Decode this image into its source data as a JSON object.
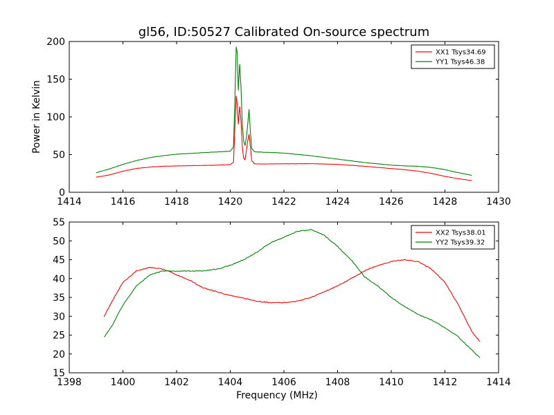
{
  "figure": {
    "title": "gl56, ID:50527 Calibrated On-source spectrum"
  },
  "chart_data": [
    {
      "type": "line",
      "title": "gl56, ID:50527 Calibrated On-source spectrum",
      "xlabel": "",
      "ylabel": "Power in Kelvin",
      "xlim": [
        1414,
        1430
      ],
      "ylim": [
        0,
        200
      ],
      "xticks": [
        "1414",
        "1416",
        "1418",
        "1420",
        "1422",
        "1424",
        "1426",
        "1428",
        "1430"
      ],
      "yticks": [
        "0",
        "50",
        "100",
        "150",
        "200"
      ],
      "legend": "top-right",
      "grid": false,
      "series": [
        {
          "name": "XX1 Tsys34.69",
          "color": "#ff0000",
          "points": [
            [
              1415.0,
              20
            ],
            [
              1415.5,
              23
            ],
            [
              1416.0,
              28
            ],
            [
              1416.5,
              31.5
            ],
            [
              1417.0,
              33.5
            ],
            [
              1417.5,
              34.5
            ],
            [
              1418.0,
              35
            ],
            [
              1418.5,
              35.3
            ],
            [
              1419.0,
              35.6
            ],
            [
              1419.5,
              36
            ],
            [
              1420.0,
              36.6
            ],
            [
              1420.12,
              40
            ],
            [
              1420.18,
              90
            ],
            [
              1420.22,
              128
            ],
            [
              1420.26,
              118
            ],
            [
              1420.3,
              90
            ],
            [
              1420.35,
              114
            ],
            [
              1420.4,
              95
            ],
            [
              1420.45,
              60
            ],
            [
              1420.5,
              45
            ],
            [
              1420.55,
              43
            ],
            [
              1420.6,
              55
            ],
            [
              1420.65,
              68
            ],
            [
              1420.7,
              77
            ],
            [
              1420.75,
              60
            ],
            [
              1420.8,
              42
            ],
            [
              1420.9,
              38
            ],
            [
              1421.0,
              37.5
            ],
            [
              1422.0,
              37.8
            ],
            [
              1423.0,
              38
            ],
            [
              1424.0,
              37
            ],
            [
              1425.0,
              34.5
            ],
            [
              1426.0,
              31.5
            ],
            [
              1426.5,
              30
            ],
            [
              1427.0,
              28
            ],
            [
              1427.5,
              25
            ],
            [
              1428.0,
              21
            ],
            [
              1428.5,
              18
            ],
            [
              1429.0,
              15.5
            ]
          ]
        },
        {
          "name": "YY1 Tsys46.38",
          "color": "#008000",
          "points": [
            [
              1415.0,
              26
            ],
            [
              1415.5,
              31
            ],
            [
              1416.0,
              37
            ],
            [
              1416.5,
              42
            ],
            [
              1417.0,
              46
            ],
            [
              1417.5,
              48.5
            ],
            [
              1418.0,
              50.5
            ],
            [
              1418.5,
              51.5
            ],
            [
              1419.0,
              52.5
            ],
            [
              1419.5,
              53.5
            ],
            [
              1420.0,
              54.5
            ],
            [
              1420.12,
              60
            ],
            [
              1420.17,
              120
            ],
            [
              1420.22,
              193
            ],
            [
              1420.26,
              185
            ],
            [
              1420.3,
              135
            ],
            [
              1420.35,
              170
            ],
            [
              1420.4,
              140
            ],
            [
              1420.45,
              90
            ],
            [
              1420.5,
              68
            ],
            [
              1420.55,
              62
            ],
            [
              1420.6,
              72
            ],
            [
              1420.65,
              90
            ],
            [
              1420.7,
              110
            ],
            [
              1420.75,
              80
            ],
            [
              1420.8,
              58
            ],
            [
              1420.9,
              54
            ],
            [
              1421.0,
              53.5
            ],
            [
              1422.0,
              52
            ],
            [
              1423.0,
              48.5
            ],
            [
              1424.0,
              44
            ],
            [
              1425.0,
              39.5
            ],
            [
              1426.0,
              36
            ],
            [
              1426.5,
              35
            ],
            [
              1427.0,
              34.5
            ],
            [
              1427.5,
              33
            ],
            [
              1428.0,
              30
            ],
            [
              1428.5,
              26
            ],
            [
              1429.0,
              22.5
            ]
          ]
        }
      ]
    },
    {
      "type": "line",
      "title": "",
      "xlabel": "Frequency (MHz)",
      "ylabel": "",
      "xlim": [
        1398,
        1414
      ],
      "ylim": [
        15,
        55
      ],
      "xticks": [
        "1398",
        "1400",
        "1402",
        "1404",
        "1406",
        "1408",
        "1410",
        "1412",
        "1414"
      ],
      "yticks": [
        "15",
        "20",
        "25",
        "30",
        "35",
        "40",
        "45",
        "50",
        "55"
      ],
      "legend": "top-right",
      "grid": false,
      "series": [
        {
          "name": "XX2 Tsys38.01",
          "color": "#ff0000",
          "points": [
            [
              1399.3,
              30
            ],
            [
              1399.6,
              34
            ],
            [
              1400.0,
              39
            ],
            [
              1400.5,
              42
            ],
            [
              1401.0,
              43
            ],
            [
              1401.5,
              42.5
            ],
            [
              1402.0,
              41
            ],
            [
              1402.5,
              39.5
            ],
            [
              1403.0,
              37.5
            ],
            [
              1403.5,
              36.5
            ],
            [
              1404.0,
              35.5
            ],
            [
              1404.5,
              34.8
            ],
            [
              1405.0,
              34
            ],
            [
              1405.5,
              33.6
            ],
            [
              1406.0,
              33.6
            ],
            [
              1406.5,
              34
            ],
            [
              1407.0,
              35
            ],
            [
              1407.5,
              36.5
            ],
            [
              1408.0,
              38
            ],
            [
              1408.5,
              40
            ],
            [
              1409.0,
              42
            ],
            [
              1409.5,
              43.5
            ],
            [
              1410.0,
              44.5
            ],
            [
              1410.5,
              45
            ],
            [
              1411.0,
              44.5
            ],
            [
              1411.5,
              42.5
            ],
            [
              1412.0,
              39
            ],
            [
              1412.5,
              33
            ],
            [
              1413.0,
              26
            ],
            [
              1413.3,
              23.3
            ]
          ]
        },
        {
          "name": "YY2 Tsys39.32",
          "color": "#008000",
          "points": [
            [
              1399.3,
              24.5
            ],
            [
              1399.6,
              27.5
            ],
            [
              1400.0,
              33
            ],
            [
              1400.5,
              38
            ],
            [
              1401.0,
              41
            ],
            [
              1401.5,
              42
            ],
            [
              1402.0,
              42
            ],
            [
              1402.5,
              42
            ],
            [
              1403.0,
              42
            ],
            [
              1403.5,
              42.5
            ],
            [
              1404.0,
              43.5
            ],
            [
              1404.5,
              45
            ],
            [
              1405.0,
              47
            ],
            [
              1405.5,
              49.5
            ],
            [
              1406.0,
              51
            ],
            [
              1406.5,
              52.5
            ],
            [
              1407.0,
              53
            ],
            [
              1407.5,
              51.5
            ],
            [
              1408.0,
              48.5
            ],
            [
              1408.5,
              45
            ],
            [
              1409.0,
              40.5
            ],
            [
              1409.5,
              38
            ],
            [
              1410.0,
              35
            ],
            [
              1410.5,
              32.5
            ],
            [
              1411.0,
              30.5
            ],
            [
              1411.5,
              29
            ],
            [
              1412.0,
              27
            ],
            [
              1412.5,
              24.5
            ],
            [
              1413.0,
              21
            ],
            [
              1413.3,
              19
            ]
          ]
        }
      ]
    }
  ]
}
